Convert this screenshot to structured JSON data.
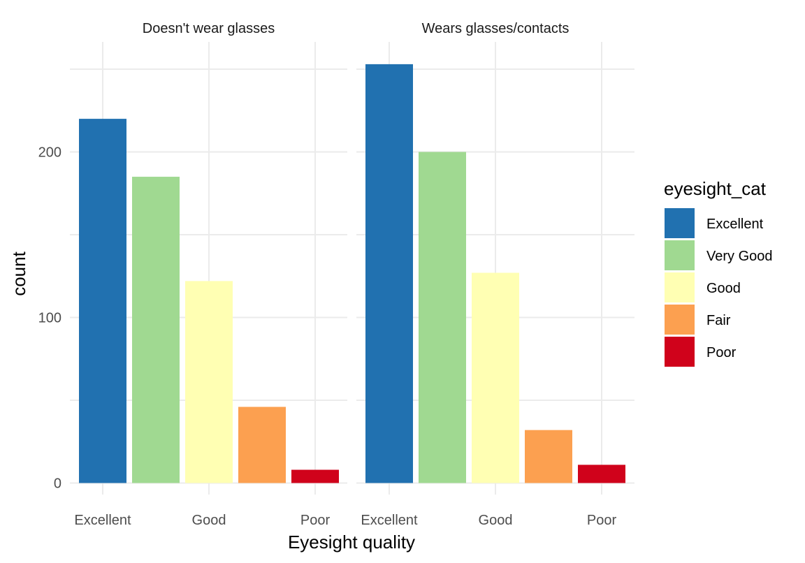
{
  "chart_data": {
    "type": "bar",
    "xlabel": "Eyesight quality",
    "ylabel": "count",
    "ylim": [
      0,
      255
    ],
    "y_ticks": [
      0,
      100,
      200
    ],
    "categories": [
      "Excellent",
      "Very Good",
      "Good",
      "Fair",
      "Poor"
    ],
    "x_tick_labels": [
      "Excellent",
      "Good",
      "Poor"
    ],
    "legend": {
      "title": "eyesight_cat",
      "position": "right",
      "entries": [
        {
          "label": "Excellent",
          "color": "#2171B0"
        },
        {
          "label": "Very Good",
          "color": "#A0D991"
        },
        {
          "label": "Good",
          "color": "#FFFFB3"
        },
        {
          "label": "Fair",
          "color": "#FCA050"
        },
        {
          "label": "Poor",
          "color": "#D0021B"
        }
      ]
    },
    "panels": [
      {
        "title": "Doesn't wear glasses",
        "values": [
          220,
          185,
          122,
          46,
          8
        ]
      },
      {
        "title": "Wears glasses/contacts",
        "values": [
          253,
          200,
          127,
          32,
          11
        ]
      }
    ],
    "grid": true
  }
}
